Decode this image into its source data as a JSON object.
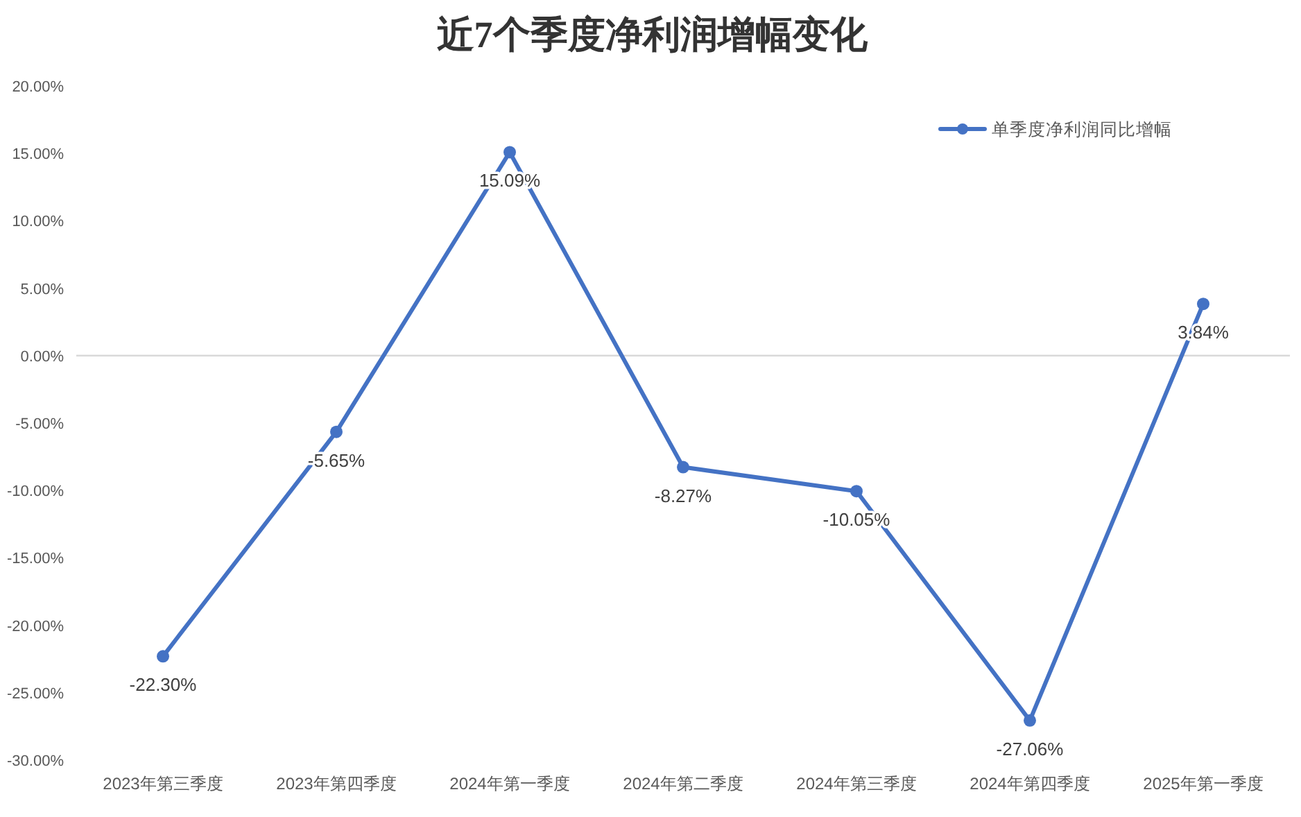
{
  "chart_data": {
    "type": "line",
    "title": "近7个季度净利润增幅变化",
    "categories": [
      "2023年第三季度",
      "2023年第四季度",
      "2024年第一季度",
      "2024年第二季度",
      "2024年第三季度",
      "2024年第四季度",
      "2025年第一季度"
    ],
    "series": [
      {
        "name": "单季度净利润同比增幅",
        "color": "#4472c4",
        "values": [
          -22.3,
          -5.65,
          15.09,
          -8.27,
          -10.05,
          -27.06,
          3.84
        ],
        "value_labels": [
          "-22.30%",
          "-5.65%",
          "15.09%",
          "-8.27%",
          "-10.05%",
          "-27.06%",
          "3.84%"
        ]
      }
    ],
    "ylim": [
      -30,
      20
    ],
    "yticks": [
      {
        "value": 20,
        "label": "20.00%"
      },
      {
        "value": 15,
        "label": "15.00%"
      },
      {
        "value": 10,
        "label": "10.00%"
      },
      {
        "value": 5,
        "label": "5.00%"
      },
      {
        "value": 0,
        "label": "0.00%"
      },
      {
        "value": -5,
        "label": "-5.00%"
      },
      {
        "value": -10,
        "label": "-10.00%"
      },
      {
        "value": -15,
        "label": "-15.00%"
      },
      {
        "value": -20,
        "label": "-20.00%"
      },
      {
        "value": -25,
        "label": "-25.00%"
      },
      {
        "value": -30,
        "label": "-30.00%"
      }
    ],
    "legend": "top right",
    "marker": "circle",
    "line_style": "solid"
  }
}
